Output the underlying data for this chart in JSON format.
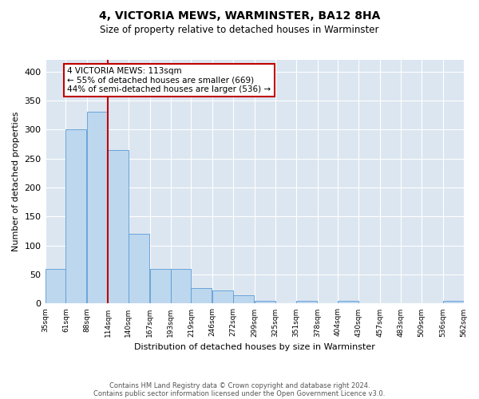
{
  "title": "4, VICTORIA MEWS, WARMINSTER, BA12 8HA",
  "subtitle": "Size of property relative to detached houses in Warminster",
  "xlabel": "Distribution of detached houses by size in Warminster",
  "ylabel": "Number of detached properties",
  "property_label": "4 VICTORIA MEWS: 113sqm",
  "annotation_line1": "← 55% of detached houses are smaller (669)",
  "annotation_line2": "44% of semi-detached houses are larger (536) →",
  "footnote1": "Contains HM Land Registry data © Crown copyright and database right 2024.",
  "footnote2": "Contains public sector information licensed under the Open Government Licence v3.0.",
  "bar_color": "#bdd7ee",
  "bar_edge_color": "#5b9bd5",
  "vline_color": "#c00000",
  "annotation_box_edge_color": "#c00000",
  "background_color": "#dce6f1",
  "bins": [
    35,
    61,
    88,
    114,
    140,
    167,
    193,
    219,
    246,
    272,
    299,
    325,
    351,
    378,
    404,
    430,
    457,
    483,
    509,
    536,
    562
  ],
  "bin_labels": [
    "35sqm",
    "61sqm",
    "88sqm",
    "114sqm",
    "140sqm",
    "167sqm",
    "193sqm",
    "219sqm",
    "246sqm",
    "272sqm",
    "299sqm",
    "325sqm",
    "351sqm",
    "378sqm",
    "404sqm",
    "430sqm",
    "457sqm",
    "483sqm",
    "509sqm",
    "536sqm",
    "562sqm"
  ],
  "counts": [
    60,
    300,
    330,
    265,
    120,
    60,
    60,
    27,
    23,
    15,
    5,
    0,
    5,
    0,
    5,
    0,
    0,
    0,
    0,
    5
  ],
  "vline_x": 114,
  "ylim": [
    0,
    420
  ],
  "yticks": [
    0,
    50,
    100,
    150,
    200,
    250,
    300,
    350,
    400
  ]
}
